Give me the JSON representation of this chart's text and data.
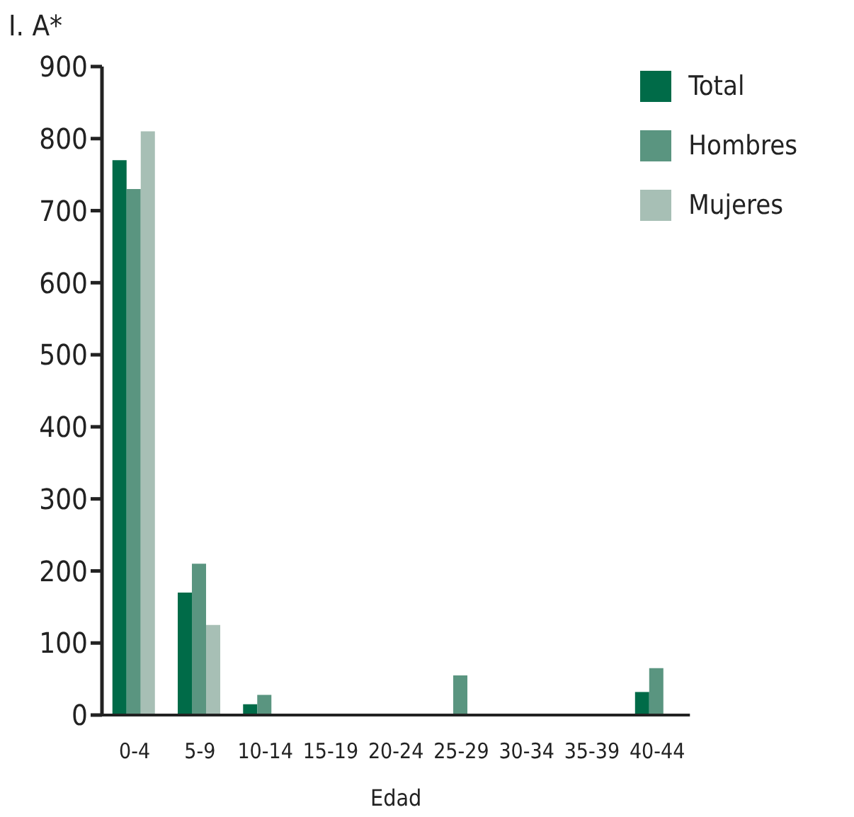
{
  "chart_data": {
    "type": "bar",
    "ylabel": "I. A*",
    "xlabel": "Edad",
    "categories": [
      "0-4",
      "5-9",
      "10-14",
      "15-19",
      "20-24",
      "25-29",
      "30-34",
      "35-39",
      "40-44"
    ],
    "series": [
      {
        "name": "Total",
        "color": "#006b48",
        "values": [
          770,
          170,
          15,
          null,
          null,
          null,
          null,
          null,
          32
        ]
      },
      {
        "name": "Hombres",
        "color": "#5a9580",
        "values": [
          730,
          210,
          28,
          null,
          null,
          55,
          null,
          null,
          65
        ]
      },
      {
        "name": "Mujeres",
        "color": "#a7bfb5",
        "values": [
          810,
          125,
          null,
          null,
          null,
          null,
          null,
          null,
          null
        ]
      }
    ],
    "ylim": [
      0,
      900
    ],
    "yticks": [
      0,
      100,
      200,
      300,
      400,
      500,
      600,
      700,
      800,
      900
    ],
    "grid": false,
    "legend": "top right"
  }
}
